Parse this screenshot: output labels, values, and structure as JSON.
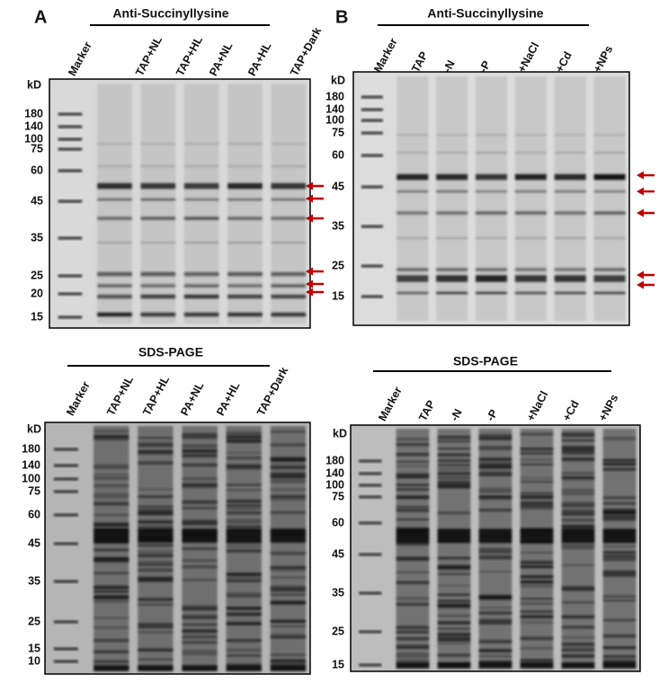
{
  "panels": [
    {
      "letter": "A",
      "title": "Anti-Succinyllysine",
      "unit": "kD",
      "lanes": [
        "Marker",
        "TAP+NL",
        "TAP+HL",
        "PA+NL",
        "PA+HL",
        "TAP+Dark"
      ],
      "markers": [
        "180",
        "140",
        "100",
        "75",
        "60",
        "45",
        "35",
        "25",
        "20",
        "15"
      ]
    },
    {
      "letter": "B",
      "title": "Anti-Succinyllysine",
      "unit": "kD",
      "lanes": [
        "Marker",
        "TAP",
        "-N",
        "-P",
        "+NaCl",
        "+Cd",
        "+NPs"
      ],
      "markers": [
        "180",
        "140",
        "100",
        "75",
        "60",
        "45",
        "35",
        "25",
        "15"
      ]
    },
    {
      "title": "SDS-PAGE",
      "unit": "kD",
      "lanes": [
        "Marker",
        "TAP+NL",
        "TAP+HL",
        "PA+NL",
        "PA+HL",
        "TAP+Dark"
      ],
      "markers": [
        "180",
        "140",
        "100",
        "75",
        "60",
        "45",
        "35",
        "25",
        "15",
        "10"
      ]
    },
    {
      "title": "SDS-PAGE",
      "unit": "kD",
      "lanes": [
        "Marker",
        "TAP",
        "-N",
        "-P",
        "+NaCl",
        "+Cd",
        "+NPs"
      ],
      "markers": [
        "180",
        "140",
        "100",
        "75",
        "60",
        "45",
        "35",
        "25",
        "15"
      ]
    }
  ]
}
